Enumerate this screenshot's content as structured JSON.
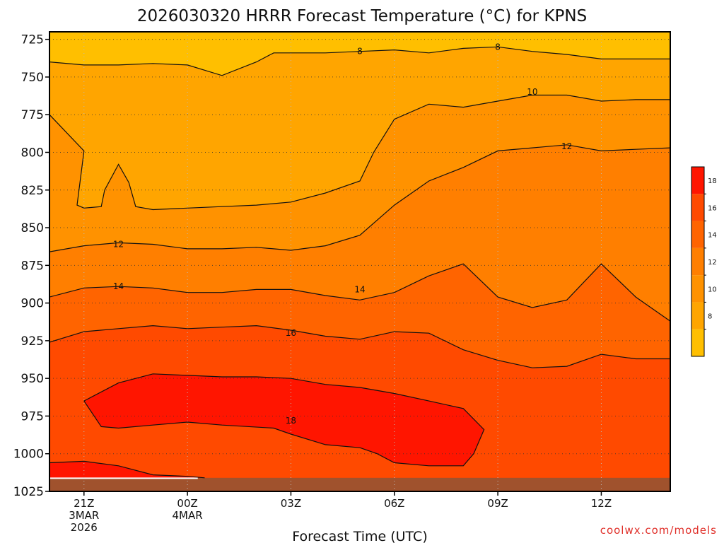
{
  "chart_data": {
    "type": "heatmap",
    "title": "2026030320 HRRR Forecast Temperature (°C) for KPNS",
    "xlabel": "Forecast Time (UTC)",
    "ylabel": "",
    "x_ticks": [
      {
        "hour": 0,
        "lines": [
          "21Z",
          "3MAR",
          "2026"
        ]
      },
      {
        "hour": 3,
        "lines": [
          "00Z",
          "4MAR"
        ]
      },
      {
        "hour": 6,
        "lines": [
          "03Z"
        ]
      },
      {
        "hour": 9,
        "lines": [
          "06Z"
        ]
      },
      {
        "hour": 12,
        "lines": [
          "09Z"
        ]
      },
      {
        "hour": 15,
        "lines": [
          "12Z"
        ]
      }
    ],
    "xlim": [
      -1,
      17
    ],
    "y_ticks": [
      725,
      750,
      775,
      800,
      825,
      850,
      875,
      900,
      925,
      950,
      975,
      1000,
      1025
    ],
    "ylim": [
      720,
      1025
    ],
    "colorbar": {
      "levels": [
        6,
        8,
        10,
        12,
        14,
        16,
        18,
        20
      ],
      "labels": [
        "8",
        "10",
        "12",
        "14",
        "16",
        "18"
      ],
      "colors": [
        "#ffbf00",
        "#ffa500",
        "#ff9200",
        "#ff7f00",
        "#ff6400",
        "#ff4a00",
        "#ff1500"
      ]
    },
    "fill_colors": {
      "t6": "#ffbf00",
      "t8": "#ffa500",
      "t10": "#ff9200",
      "t12": "#ff7f00",
      "t14": "#ff6400",
      "t16": "#ff4a00",
      "t18": "#ff1500",
      "ground": "#a0522d"
    },
    "contours": [
      {
        "level": 8,
        "label": "8",
        "label_points": [
          [
            8.0,
            733
          ],
          [
            12.0,
            730
          ]
        ],
        "points": [
          [
            -1,
            740
          ],
          [
            0,
            742
          ],
          [
            1,
            742
          ],
          [
            2,
            741
          ],
          [
            3,
            742
          ],
          [
            4,
            749
          ],
          [
            5,
            740
          ],
          [
            5.5,
            734
          ],
          [
            7,
            734
          ],
          [
            8,
            733
          ],
          [
            9,
            732
          ],
          [
            10,
            734
          ],
          [
            11,
            731
          ],
          [
            12,
            730
          ],
          [
            13,
            733
          ],
          [
            14,
            735
          ],
          [
            15,
            738
          ],
          [
            16,
            738
          ],
          [
            17,
            738
          ]
        ]
      },
      {
        "level": 10,
        "label": "10",
        "label_points": [
          [
            13.0,
            760
          ]
        ],
        "points": [
          [
            -1,
            775
          ],
          [
            0,
            799
          ],
          [
            -0.2,
            835
          ],
          [
            0,
            837
          ],
          [
            0.5,
            836
          ],
          [
            0.6,
            825
          ],
          [
            1,
            808
          ],
          [
            1.3,
            820
          ],
          [
            1.5,
            836
          ],
          [
            2,
            838
          ],
          [
            3,
            837
          ],
          [
            4,
            836
          ],
          [
            5,
            835
          ],
          [
            6,
            833
          ],
          [
            7,
            827
          ],
          [
            8,
            819
          ],
          [
            8.4,
            800
          ],
          [
            9,
            778
          ],
          [
            10,
            768
          ],
          [
            11,
            770
          ],
          [
            12,
            766
          ],
          [
            13,
            762
          ],
          [
            14,
            762
          ],
          [
            15,
            766
          ],
          [
            16,
            765
          ],
          [
            17,
            765
          ]
        ]
      },
      {
        "level": 12,
        "label": "12",
        "label_points": [
          [
            1.0,
            861
          ],
          [
            14.0,
            796
          ]
        ],
        "points": [
          [
            -1,
            866
          ],
          [
            0,
            862
          ],
          [
            1,
            860
          ],
          [
            2,
            861
          ],
          [
            3,
            864
          ],
          [
            4,
            864
          ],
          [
            5,
            863
          ],
          [
            6,
            865
          ],
          [
            7,
            862
          ],
          [
            8,
            855
          ],
          [
            9,
            835
          ],
          [
            10,
            819
          ],
          [
            11,
            810
          ],
          [
            12,
            799
          ],
          [
            13,
            797
          ],
          [
            14,
            795
          ],
          [
            15,
            799
          ],
          [
            16,
            798
          ],
          [
            17,
            797
          ]
        ]
      },
      {
        "level": 14,
        "label": "14",
        "label_points": [
          [
            1.0,
            889
          ],
          [
            8.0,
            891
          ]
        ],
        "points": [
          [
            -1,
            896
          ],
          [
            0,
            890
          ],
          [
            1,
            889
          ],
          [
            2,
            890
          ],
          [
            3,
            893
          ],
          [
            4,
            893
          ],
          [
            5,
            891
          ],
          [
            6,
            891
          ],
          [
            7,
            895
          ],
          [
            8,
            898
          ],
          [
            9,
            893
          ],
          [
            10,
            882
          ],
          [
            11,
            874
          ],
          [
            12,
            896
          ],
          [
            13,
            903
          ],
          [
            14,
            898
          ],
          [
            15,
            874
          ],
          [
            16,
            896
          ],
          [
            17,
            912
          ]
        ]
      },
      {
        "level": 16,
        "label": "16",
        "label_points": [
          [
            6.0,
            920
          ]
        ],
        "points": [
          [
            -1,
            926
          ],
          [
            0,
            919
          ],
          [
            1,
            917
          ],
          [
            2,
            915
          ],
          [
            3,
            917
          ],
          [
            4,
            916
          ],
          [
            5,
            915
          ],
          [
            6,
            918
          ],
          [
            7,
            922
          ],
          [
            8,
            924
          ],
          [
            9,
            919
          ],
          [
            10,
            920
          ],
          [
            11,
            931
          ],
          [
            12,
            938
          ],
          [
            13,
            943
          ],
          [
            14,
            942
          ],
          [
            15,
            934
          ],
          [
            16,
            937
          ],
          [
            17,
            937
          ]
        ]
      },
      {
        "level": 18,
        "label": "18",
        "label_points": [
          [
            6.0,
            978
          ]
        ],
        "points": [
          [
            0,
            965
          ],
          [
            1,
            953
          ],
          [
            2,
            947
          ],
          [
            3,
            948
          ],
          [
            4,
            949
          ],
          [
            5,
            949
          ],
          [
            6,
            950
          ],
          [
            7,
            954
          ],
          [
            8,
            956
          ],
          [
            9,
            960
          ],
          [
            10,
            965
          ],
          [
            11,
            970
          ],
          [
            11.6,
            984
          ],
          [
            11.3,
            1000
          ],
          [
            11,
            1008
          ],
          [
            10,
            1008
          ],
          [
            9,
            1006
          ],
          [
            8.5,
            1000
          ],
          [
            8,
            996
          ],
          [
            7,
            994
          ],
          [
            6,
            987
          ],
          [
            5.5,
            983
          ],
          [
            4,
            981
          ],
          [
            3,
            979
          ],
          [
            2,
            981
          ],
          [
            1,
            983
          ],
          [
            0.5,
            982
          ],
          [
            0,
            965
          ]
        ]
      },
      {
        "level": 18,
        "label": "",
        "label_points": [],
        "points": [
          [
            -1,
            1006
          ],
          [
            0,
            1005
          ],
          [
            1,
            1008
          ],
          [
            2,
            1014
          ],
          [
            3,
            1015
          ],
          [
            3.5,
            1016
          ]
        ]
      }
    ],
    "ground_top": 1016
  },
  "watermark": "coolwx.com/models"
}
